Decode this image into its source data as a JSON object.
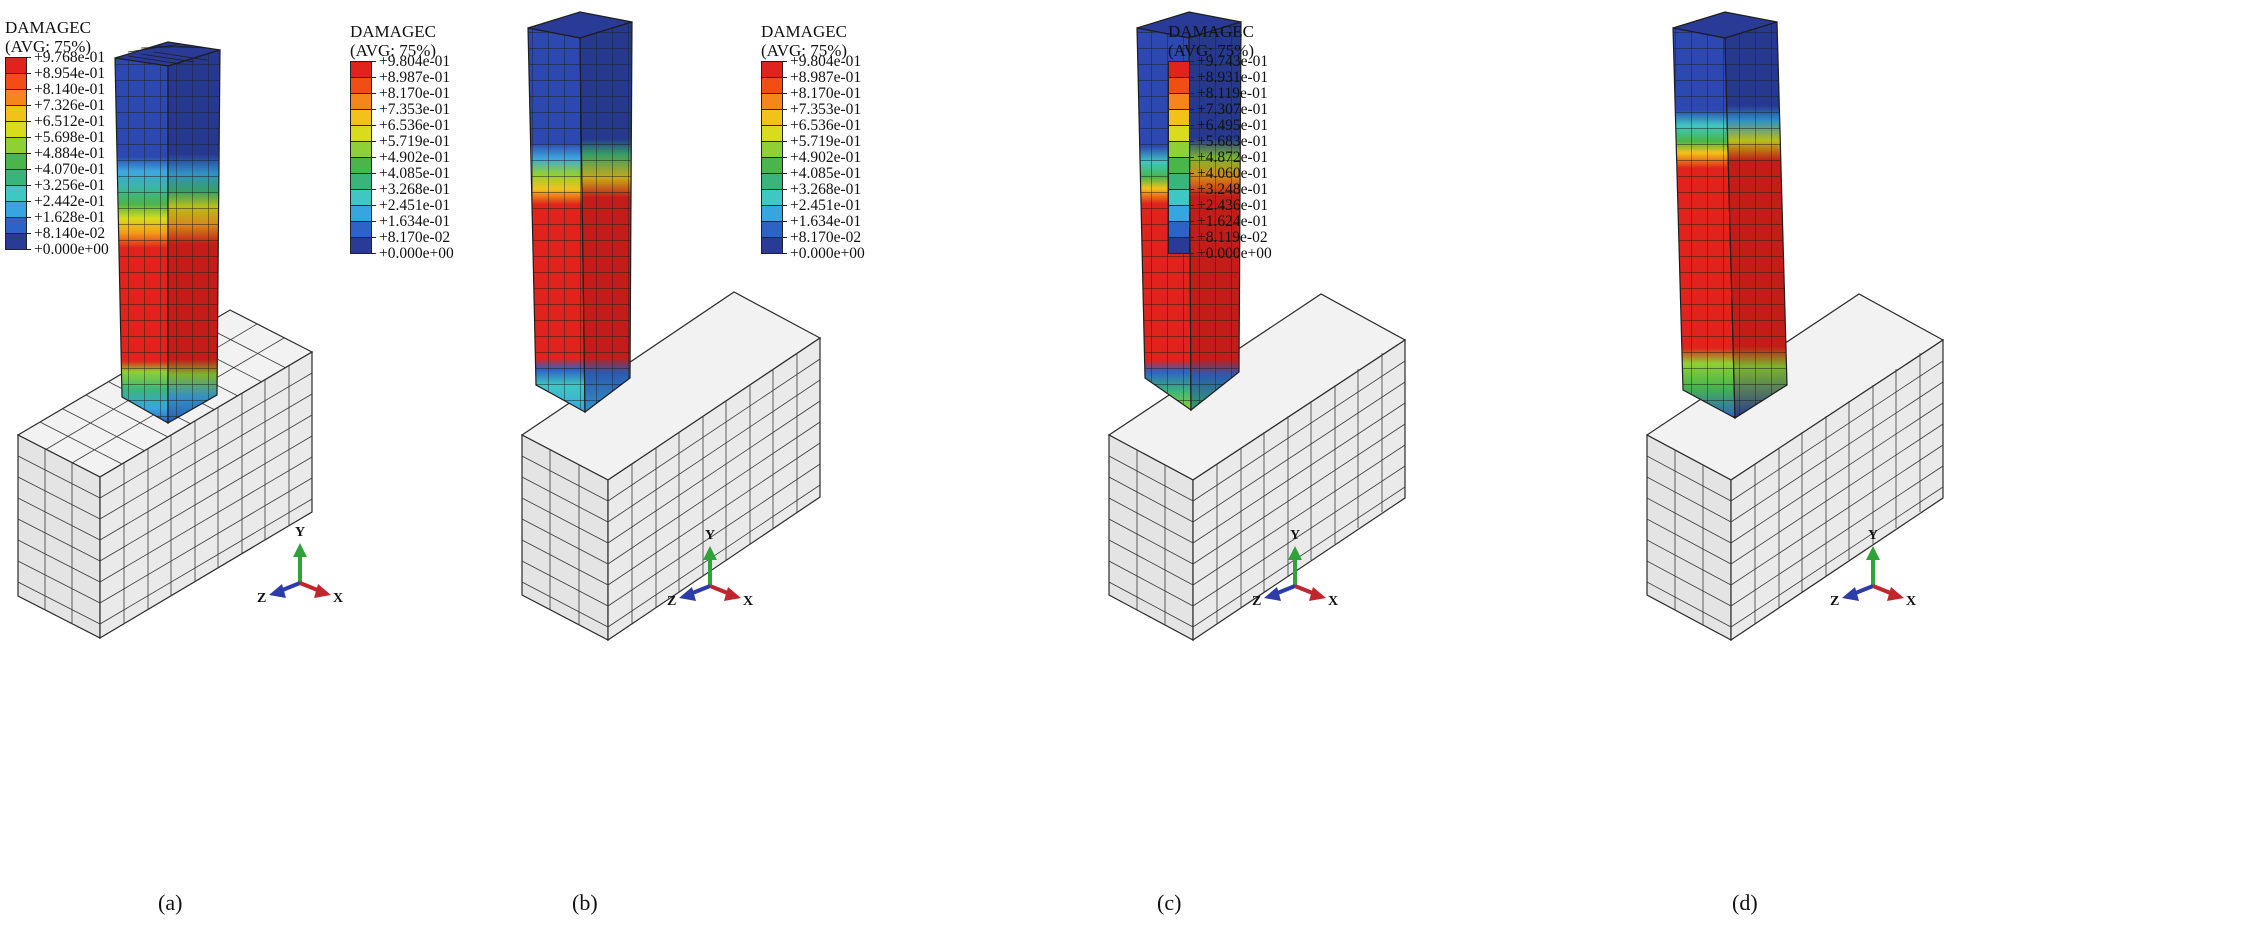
{
  "legend_title": "DAMAGEC",
  "legend_subtitle": "(AVG: 75%)",
  "axis_labels": {
    "y": "Y",
    "z": "Z",
    "x": "X"
  },
  "colors": {
    "scale": [
      "#e0231c",
      "#f24d14",
      "#f5861b",
      "#f3c21a",
      "#d8dc1c",
      "#8fd035",
      "#49b54a",
      "#39b57c",
      "#3fc7c4",
      "#37a6e0",
      "#2d63c6",
      "#2a3a97"
    ],
    "block": "#ececec",
    "edge": "#2b2b2b"
  },
  "panels": [
    {
      "caption": "(a)",
      "values": [
        "+9.768e-01",
        "+8.954e-01",
        "+8.140e-01",
        "+7.326e-01",
        "+6.512e-01",
        "+5.698e-01",
        "+4.884e-01",
        "+4.070e-01",
        "+3.256e-01",
        "+2.442e-01",
        "+1.628e-01",
        "+8.140e-02",
        "+0.000e+00"
      ]
    },
    {
      "caption": "(b)",
      "values": [
        "+9.804e-01",
        "+8.987e-01",
        "+8.170e-01",
        "+7.353e-01",
        "+6.536e-01",
        "+5.719e-01",
        "+4.902e-01",
        "+4.085e-01",
        "+3.268e-01",
        "+2.451e-01",
        "+1.634e-01",
        "+8.170e-02",
        "+0.000e+00"
      ]
    },
    {
      "caption": "(c)",
      "values": [
        "+9.804e-01",
        "+8.987e-01",
        "+8.170e-01",
        "+7.353e-01",
        "+6.536e-01",
        "+5.719e-01",
        "+4.902e-01",
        "+4.085e-01",
        "+3.268e-01",
        "+2.451e-01",
        "+1.634e-01",
        "+8.170e-02",
        "+0.000e+00"
      ]
    },
    {
      "caption": "(d)",
      "values": [
        "+9.743e-01",
        "+8.931e-01",
        "+8.119e-01",
        "+7.307e-01",
        "+6.495e-01",
        "+5.683e-01",
        "+4.872e-01",
        "+4.060e-01",
        "+3.248e-01",
        "+2.436e-01",
        "+1.624e-01",
        "+8.119e-02",
        "+0.000e+00"
      ]
    }
  ]
}
